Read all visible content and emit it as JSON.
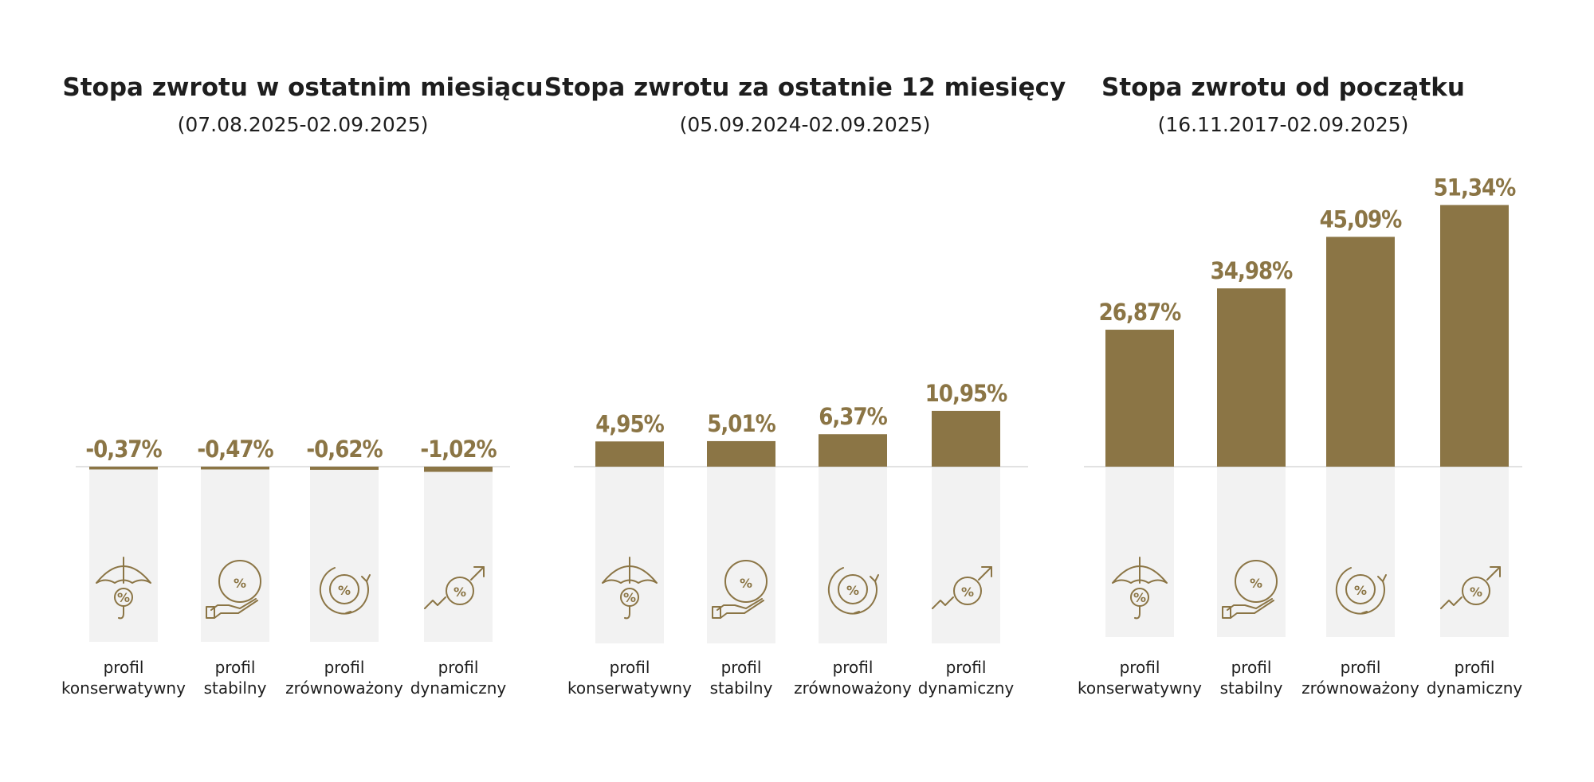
{
  "colors": {
    "bar": "#8b7545",
    "track": "#f2f2f2",
    "baseline": "#d9d9d9",
    "text": "#1e1e1e"
  },
  "icons": [
    "umbrella-percent-icon",
    "hand-percent-icon",
    "cycle-percent-icon",
    "growth-percent-icon"
  ],
  "chart_data": [
    {
      "type": "bar",
      "title": "Stopa zwrotu w ostatnim miesiącu",
      "subtitle": "(07.08.2025-02.09.2025)",
      "categories": [
        [
          "profil",
          "konserwatywny"
        ],
        [
          "profil",
          "stabilny"
        ],
        [
          "profil",
          "zrównoważony"
        ],
        [
          "profil",
          "dynamiczny"
        ]
      ],
      "values": [
        -0.37,
        -0.47,
        -0.62,
        -1.02
      ],
      "labels": [
        "-0,37%",
        "-0,47%",
        "-0,62%",
        "-1,02%"
      ],
      "unit": "%"
    },
    {
      "type": "bar",
      "title": "Stopa zwrotu za ostatnie 12 miesięcy",
      "subtitle": "(05.09.2024-02.09.2025)",
      "categories": [
        [
          "profil",
          "konserwatywny"
        ],
        [
          "profil",
          "stabilny"
        ],
        [
          "profil",
          "zrównoważony"
        ],
        [
          "profil",
          "dynamiczny"
        ]
      ],
      "values": [
        4.95,
        5.01,
        6.37,
        10.95
      ],
      "labels": [
        "4,95%",
        "5,01%",
        "6,37%",
        "10,95%"
      ],
      "unit": "%"
    },
    {
      "type": "bar",
      "title": "Stopa zwrotu od początku",
      "subtitle": "(16.11.2017-02.09.2025)",
      "categories": [
        [
          "profil",
          "konserwatywny"
        ],
        [
          "profil",
          "stabilny"
        ],
        [
          "profil",
          "zrównoważony"
        ],
        [
          "profil",
          "dynamiczny"
        ]
      ],
      "values": [
        26.87,
        34.98,
        45.09,
        51.34
      ],
      "labels": [
        "26,87%",
        "34,98%",
        "45,09%",
        "51,34%"
      ],
      "unit": "%"
    }
  ]
}
